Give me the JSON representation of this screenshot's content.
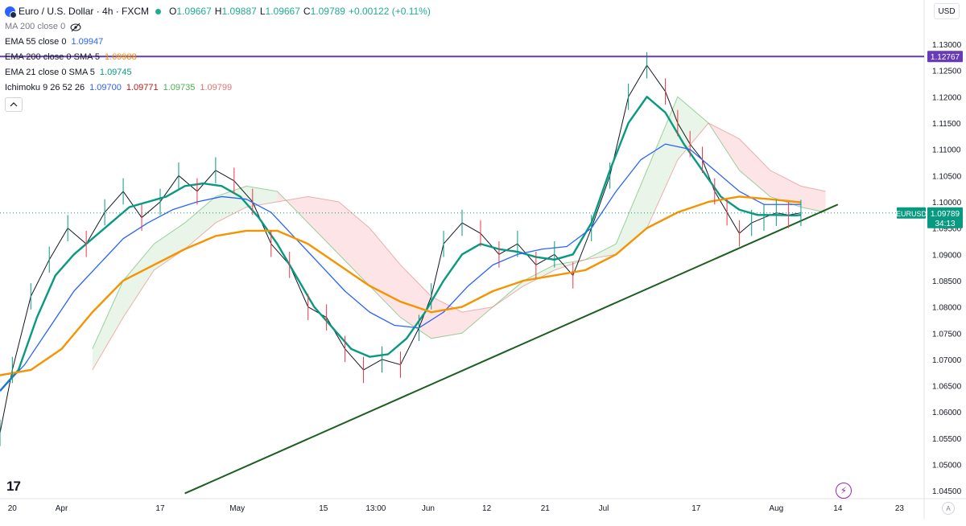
{
  "header": {
    "symbol": "Euro / U.S. Dollar · 4h · FXCM",
    "ohlc": [
      {
        "k": "O",
        "v": "1.09667"
      },
      {
        "k": "H",
        "v": "1.09887"
      },
      {
        "k": "L",
        "v": "1.09667"
      },
      {
        "k": "C",
        "v": "1.09789"
      }
    ],
    "change": "+0.00122 (+0.11%)",
    "currency": "USD"
  },
  "indicators": [
    {
      "label": "MA 200 close 0",
      "values": [],
      "hidden": true
    },
    {
      "label": "EMA 55 close 0",
      "values": [
        {
          "v": "1.09947",
          "color": "#2962ff"
        }
      ]
    },
    {
      "label": "EMA 200 close 0 SMA 5",
      "values": [
        {
          "v": "1.09988",
          "color": "#f59300"
        }
      ]
    },
    {
      "label": "EMA 21 close 0 SMA 5",
      "values": [
        {
          "v": "1.09745",
          "color": "#089981"
        }
      ]
    },
    {
      "label": "Ichimoku 9 26 52 26",
      "values": [
        {
          "v": "1.09700",
          "color": "#2962ff"
        },
        {
          "v": "1.09771",
          "color": "#b71c1c"
        },
        {
          "v": "1.09735",
          "color": "#4caf50"
        },
        {
          "v": "1.09799",
          "color": "#e57373"
        }
      ]
    }
  ],
  "chart_data": {
    "type": "line",
    "y_ticks": [
      "1.13000",
      "1.12500",
      "1.12000",
      "1.11500",
      "1.11000",
      "1.10500",
      "1.10000",
      "1.09500",
      "1.09000",
      "1.08500",
      "1.08000",
      "1.07500",
      "1.07000",
      "1.06500",
      "1.06000",
      "1.05500",
      "1.05000",
      "1.04500"
    ],
    "y_range": [
      1.0435,
      1.1323
    ],
    "x_ticks": [
      {
        "label": "20",
        "x": 0.2
      },
      {
        "label": "Apr",
        "x": 1
      },
      {
        "label": "17",
        "x": 2.6
      },
      {
        "label": "May",
        "x": 3.85
      },
      {
        "label": "15",
        "x": 5.25
      },
      {
        "label": "13:00",
        "x": 6.1
      },
      {
        "label": "Jun",
        "x": 6.95
      },
      {
        "label": "12",
        "x": 7.9
      },
      {
        "label": "21",
        "x": 8.85
      },
      {
        "label": "Jul",
        "x": 9.8
      },
      {
        "label": "17",
        "x": 11.3
      },
      {
        "label": "Aug",
        "x": 12.6
      },
      {
        "label": "14",
        "x": 13.6
      },
      {
        "label": "23",
        "x": 14.6
      }
    ],
    "x_range": [
      0,
      15
    ],
    "series": [
      {
        "name": "EURUSD",
        "color": "#131722",
        "x": [
          0,
          0.2,
          0.5,
          0.8,
          1.1,
          1.4,
          1.7,
          2.0,
          2.3,
          2.6,
          2.9,
          3.2,
          3.5,
          3.8,
          4.1,
          4.4,
          4.7,
          5.0,
          5.3,
          5.6,
          5.9,
          6.2,
          6.5,
          6.8,
          7.0,
          7.2,
          7.5,
          7.8,
          8.1,
          8.4,
          8.7,
          9.0,
          9.3,
          9.6,
          9.9,
          10.2,
          10.5,
          10.8,
          11.0,
          11.2,
          11.4,
          11.6,
          11.8,
          12.0,
          12.2,
          12.4,
          12.6,
          12.8,
          13.0
        ],
        "y": [
          1.056,
          1.068,
          1.082,
          1.089,
          1.095,
          1.092,
          1.098,
          1.102,
          1.097,
          1.1,
          1.105,
          1.102,
          1.106,
          1.104,
          1.1,
          1.092,
          1.088,
          1.08,
          1.078,
          1.072,
          1.068,
          1.07,
          1.069,
          1.076,
          1.082,
          1.092,
          1.096,
          1.094,
          1.09,
          1.092,
          1.088,
          1.09,
          1.086,
          1.095,
          1.105,
          1.12,
          1.126,
          1.121,
          1.115,
          1.111,
          1.108,
          1.102,
          1.098,
          1.094,
          1.096,
          1.097,
          1.0979,
          1.0975,
          1.0979
        ]
      },
      {
        "name": "EMA 21",
        "color": "#089981",
        "x": [
          0,
          0.3,
          0.6,
          0.9,
          1.2,
          1.5,
          1.8,
          2.1,
          2.4,
          2.7,
          3.0,
          3.3,
          3.6,
          3.9,
          4.2,
          4.5,
          4.8,
          5.1,
          5.4,
          5.7,
          6.0,
          6.3,
          6.6,
          6.9,
          7.2,
          7.5,
          7.8,
          8.1,
          8.4,
          8.7,
          9.0,
          9.3,
          9.6,
          9.9,
          10.2,
          10.5,
          10.8,
          11.1,
          11.4,
          11.7,
          12.0,
          12.3,
          12.6,
          12.9,
          13.0
        ],
        "y": [
          1.064,
          1.068,
          1.078,
          1.086,
          1.09,
          1.093,
          1.096,
          1.099,
          1.1,
          1.101,
          1.103,
          1.1035,
          1.103,
          1.101,
          1.097,
          1.092,
          1.086,
          1.08,
          1.076,
          1.072,
          1.0705,
          1.071,
          1.074,
          1.079,
          1.085,
          1.09,
          1.092,
          1.091,
          1.0905,
          1.0895,
          1.089,
          1.09,
          1.096,
          1.106,
          1.115,
          1.12,
          1.117,
          1.111,
          1.106,
          1.101,
          1.0985,
          1.0975,
          1.0975,
          1.0974,
          1.0975
        ]
      },
      {
        "name": "EMA 55",
        "color": "#2962ff",
        "x": [
          0,
          0.4,
          0.8,
          1.2,
          1.6,
          2.0,
          2.4,
          2.8,
          3.2,
          3.6,
          4.0,
          4.4,
          4.8,
          5.2,
          5.6,
          6.0,
          6.4,
          6.8,
          7.2,
          7.6,
          8.0,
          8.4,
          8.8,
          9.2,
          9.6,
          10.0,
          10.4,
          10.8,
          11.2,
          11.6,
          12.0,
          12.4,
          12.8,
          13.0
        ],
        "y": [
          1.064,
          1.069,
          1.076,
          1.083,
          1.088,
          1.093,
          1.096,
          1.0985,
          1.1,
          1.101,
          1.1005,
          1.098,
          1.093,
          1.088,
          1.083,
          1.079,
          1.0765,
          1.076,
          1.079,
          1.084,
          1.088,
          1.09,
          1.091,
          1.0915,
          1.095,
          1.102,
          1.108,
          1.111,
          1.11,
          1.106,
          1.102,
          1.0995,
          1.0995,
          1.0995
        ]
      },
      {
        "name": "EMA 200",
        "color": "#f59300",
        "x": [
          0,
          0.5,
          1.0,
          1.5,
          2.0,
          2.5,
          3.0,
          3.5,
          4.0,
          4.5,
          5.0,
          5.5,
          6.0,
          6.5,
          7.0,
          7.5,
          8.0,
          8.5,
          9.0,
          9.5,
          10.0,
          10.5,
          11.0,
          11.5,
          12.0,
          12.5,
          13.0
        ],
        "y": [
          1.067,
          1.068,
          1.072,
          1.079,
          1.085,
          1.088,
          1.091,
          1.0935,
          1.0945,
          1.0945,
          1.092,
          1.088,
          1.084,
          1.081,
          1.079,
          1.08,
          1.083,
          1.085,
          1.086,
          1.087,
          1.09,
          1.095,
          1.098,
          1.1,
          1.101,
          1.1005,
          1.0999
        ]
      },
      {
        "name": "Trendline",
        "color": "#1b5e20",
        "x": [
          3.0,
          13.6
        ],
        "y": [
          1.0445,
          1.0995
        ]
      }
    ],
    "ichimoku_cloud": {
      "x": [
        1.5,
        2.0,
        2.5,
        3.0,
        3.5,
        4.0,
        4.5,
        5.0,
        5.5,
        6.0,
        6.5,
        7.0,
        7.5,
        8.0,
        8.5,
        9.0,
        9.5,
        10.0,
        10.5,
        11.0,
        11.5,
        12.0,
        12.5,
        13.0,
        13.4
      ],
      "span_a": [
        1.072,
        1.085,
        1.092,
        1.096,
        1.101,
        1.103,
        1.102,
        1.096,
        1.09,
        1.084,
        1.078,
        1.074,
        1.075,
        1.08,
        1.085,
        1.088,
        1.089,
        1.092,
        1.106,
        1.12,
        1.115,
        1.106,
        1.101,
        1.099,
        1.098
      ],
      "span_b": [
        1.068,
        1.078,
        1.087,
        1.091,
        1.096,
        1.099,
        1.1,
        1.101,
        1.1,
        1.095,
        1.088,
        1.082,
        1.079,
        1.08,
        1.084,
        1.087,
        1.089,
        1.09,
        1.095,
        1.108,
        1.115,
        1.112,
        1.106,
        1.103,
        1.102
      ]
    },
    "h_lines": [
      {
        "value": 1.12767,
        "label": "1.12767",
        "color": "#673ab7"
      },
      {
        "value": 1.09789,
        "label": "1.09789",
        "sub": "34:13",
        "color": "#089981",
        "tag": "EURUSD",
        "dashed": true
      }
    ],
    "last_price": "1.09789",
    "countdown": "34:13",
    "tag": "EURUSD"
  },
  "footer": {
    "logo": "17",
    "auto_label": "A"
  }
}
